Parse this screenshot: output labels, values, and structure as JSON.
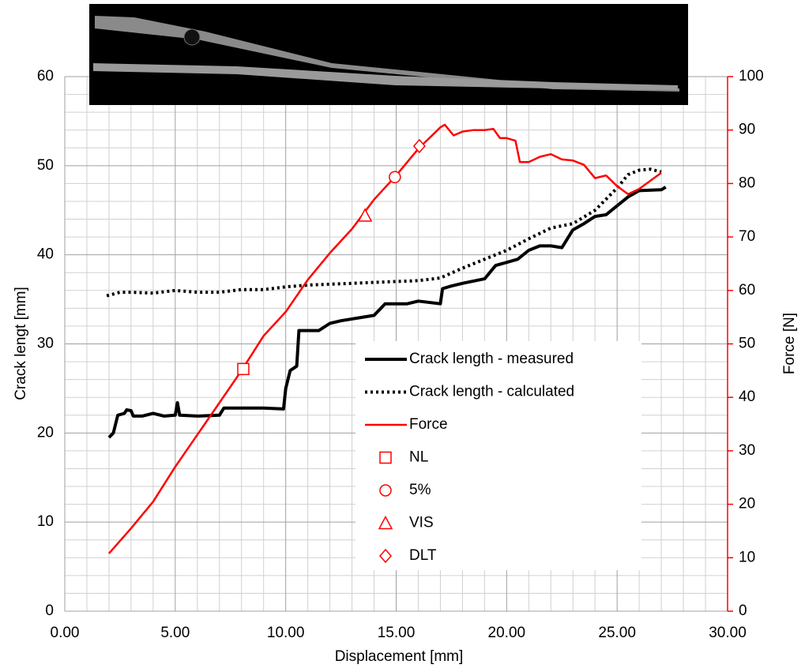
{
  "chart_data": {
    "type": "line",
    "xlabel": "Displacement [mm]",
    "ylabel": "Crack lengt [mm]",
    "y2label": "Force [N]",
    "xlim": [
      0,
      30
    ],
    "xticks": [
      {
        "value": 0,
        "label": "0.00"
      },
      {
        "value": 5,
        "label": "5.00"
      },
      {
        "value": 10,
        "label": "10.00"
      },
      {
        "value": 15,
        "label": "15.00"
      },
      {
        "value": 20,
        "label": "20.00"
      },
      {
        "value": 25,
        "label": "25.00"
      },
      {
        "value": 30,
        "label": "30.00"
      }
    ],
    "ylim": [
      0,
      60
    ],
    "yticks": [
      0,
      10,
      20,
      30,
      40,
      50,
      60
    ],
    "y2lim": [
      0,
      100
    ],
    "y2ticks": [
      0,
      10,
      20,
      30,
      40,
      50,
      60,
      70,
      80,
      90,
      100
    ],
    "y2color": "#ff0000",
    "grid": true,
    "legend": "lower right",
    "series": [
      {
        "name": "Crack length - measured",
        "color": "#000000",
        "style": "solid",
        "width": 4,
        "x": [
          2.0,
          2.2,
          2.4,
          2.7,
          2.8,
          3.0,
          3.1,
          3.5,
          4.0,
          4.5,
          5.0,
          5.1,
          5.2,
          6.0,
          7.0,
          7.2,
          8.0,
          9.0,
          9.9,
          10.0,
          10.2,
          10.5,
          10.6,
          11.5,
          12.0,
          12.5,
          13.5,
          14.0,
          14.5,
          15.5,
          16.0,
          17.0,
          17.1,
          17.5,
          18.0,
          19.0,
          19.5,
          20.5,
          21.0,
          21.5,
          22.0,
          22.5,
          23.0,
          23.5,
          24.0,
          24.5,
          25.0,
          25.5,
          26.0,
          27.0,
          27.2
        ],
        "values": [
          19.5,
          20,
          22,
          22.2,
          22.6,
          22.5,
          21.9,
          21.9,
          22.2,
          21.9,
          22.0,
          23.4,
          22.0,
          21.9,
          22.0,
          22.8,
          22.8,
          22.8,
          22.7,
          25,
          27,
          27.5,
          31.5,
          31.5,
          32.3,
          32.6,
          33,
          33.2,
          34.5,
          34.5,
          34.8,
          34.5,
          36.2,
          36.5,
          36.8,
          37.3,
          38.8,
          39.5,
          40.5,
          41.0,
          41.0,
          40.8,
          42.8,
          43.5,
          44.3,
          44.5,
          45.5,
          46.5,
          47.2,
          47.3,
          47.6
        ]
      },
      {
        "name": "Crack length - calculated",
        "color": "#000000",
        "style": "dotted",
        "width": 4,
        "x": [
          1.9,
          2.5,
          3,
          4,
          5,
          6,
          7,
          8,
          9,
          10,
          11,
          12,
          13,
          14,
          15,
          16,
          17,
          18,
          19,
          20,
          21,
          22,
          23,
          24,
          25,
          25.5,
          26,
          26.5,
          27
        ],
        "values": [
          35.4,
          35.8,
          35.8,
          35.7,
          36,
          35.8,
          35.8,
          36.1,
          36.1,
          36.4,
          36.6,
          36.7,
          36.8,
          36.9,
          37,
          37.1,
          37.4,
          38.5,
          39.5,
          40.5,
          41.8,
          43,
          43.5,
          45,
          47.5,
          49,
          49.5,
          49.6,
          49.3
        ]
      },
      {
        "name": "Force",
        "color": "#ff0000",
        "style": "solid",
        "width": 2.5,
        "axis": "y2",
        "x": [
          2.0,
          3,
          4,
          5,
          6,
          7,
          8,
          9,
          10,
          11,
          12,
          13,
          14,
          15,
          16,
          16.5,
          17,
          17.2,
          17.6,
          18,
          18.5,
          19,
          19.4,
          19.7,
          20,
          20.4,
          20.6,
          21,
          21.5,
          22,
          22.5,
          23,
          23.5,
          24,
          24.5,
          25,
          25.5,
          26,
          26.5,
          27
        ],
        "values": [
          10.8,
          15.5,
          20.5,
          27,
          33,
          39,
          45,
          51.5,
          56,
          62,
          67,
          71.5,
          77,
          81.5,
          86.5,
          88.5,
          90.5,
          91,
          89,
          89.7,
          90,
          90,
          90.2,
          88.5,
          88.5,
          88,
          84,
          84,
          85,
          85.5,
          84.5,
          84.3,
          83.5,
          81,
          81.5,
          79.5,
          78,
          79,
          80.5,
          82
        ]
      },
      {
        "name": "NL",
        "color": "#ff0000",
        "marker": "square",
        "axis": "y2",
        "x": [
          8.08
        ],
        "values": [
          45.3
        ]
      },
      {
        "name": "5%",
        "color": "#ff0000",
        "marker": "circle",
        "axis": "y2",
        "x": [
          14.94
        ],
        "values": [
          81.2
        ]
      },
      {
        "name": "VIS",
        "color": "#ff0000",
        "marker": "triangle",
        "axis": "y2",
        "x": [
          13.59
        ],
        "values": [
          74
        ]
      },
      {
        "name": "DLT",
        "color": "#ff0000",
        "marker": "diamond",
        "axis": "y2",
        "x": [
          16.05
        ],
        "values": [
          87
        ]
      }
    ]
  }
}
